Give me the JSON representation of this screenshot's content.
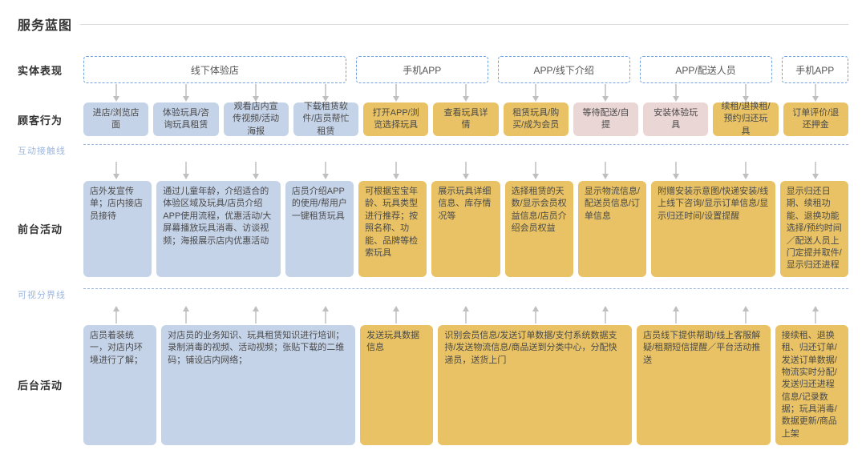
{
  "title": "服务蓝图",
  "labels": {
    "entity": "实体表现",
    "customer": "顾客行为",
    "interaction_line": "互动接触线",
    "front": "前台活动",
    "visibility_line": "可视分界线",
    "back": "后台活动"
  },
  "colors": {
    "blue": "#c5d3e8",
    "gold": "#e8c264",
    "pink": "#ead6d4",
    "dash": "#6fa0e0",
    "line": "#9bb7e0",
    "title_gray": "#d9d9d9"
  },
  "entity_boxes": [
    {
      "text": "线下体验店",
      "span": 4
    },
    {
      "text": "手机APP",
      "span": 2
    },
    {
      "text": "APP/线下介绍",
      "span": 2
    },
    {
      "text": "APP/配送人员",
      "span": 2
    },
    {
      "text": "手机APP",
      "span": 1
    }
  ],
  "customer_actions": [
    {
      "text": "进店/浏览店面",
      "color": "blue"
    },
    {
      "text": "体验玩具/咨询玩具租赁",
      "color": "blue"
    },
    {
      "text": "观看店内宣传视频/活动海报",
      "color": "blue"
    },
    {
      "text": "下载租赁软件/店员帮忙租赁",
      "color": "blue"
    },
    {
      "text": "打开APP/浏览选择玩具",
      "color": "gold"
    },
    {
      "text": "查看玩具详情",
      "color": "gold"
    },
    {
      "text": "租赁玩具/购买/成为会员",
      "color": "gold"
    },
    {
      "text": "等待配送/自提",
      "color": "pink"
    },
    {
      "text": "安装体验玩具",
      "color": "pink"
    },
    {
      "text": "续租/退换租/预约归还玩具",
      "color": "gold"
    },
    {
      "text": "订单评价/退还押金",
      "color": "gold"
    }
  ],
  "front_activities": [
    {
      "text": "店外发宣传单；店内接店员接待",
      "color": "blue",
      "cols": [
        0
      ]
    },
    {
      "text": "通过儿童年龄，介绍适合的体验区域及玩具/店员介绍APP使用流程，优惠活动/大屏幕播放玩具消毒、访谈视频；海报展示店内优惠活动",
      "color": "blue",
      "cols": [
        1,
        2
      ]
    },
    {
      "text": "店员介绍APP的使用/帮用户一键租赁玩具",
      "color": "blue",
      "cols": [
        3
      ]
    },
    {
      "text": "可根据宝宝年龄、玩具类型进行推荐；按照名称、功能、品牌等检索玩具",
      "color": "gold",
      "cols": [
        4
      ]
    },
    {
      "text": "展示玩具详细信息、库存情况等",
      "color": "gold",
      "cols": [
        5
      ]
    },
    {
      "text": "选择租赁的天数/显示会员权益信息/店员介绍会员权益",
      "color": "gold",
      "cols": [
        6
      ]
    },
    {
      "text": "显示物流信息/配送员信息/订单信息",
      "color": "gold",
      "cols": [
        7
      ]
    },
    {
      "text": "附赠安装示意图/快递安装/线上线下咨询/显示订单信息/显示归还时间/设置提醒",
      "color": "gold",
      "cols": [
        8,
        9
      ]
    },
    {
      "text": "显示归还日期、续租功能、退换功能选择/预约时间／配送人员上门定提并取件/显示归还进程",
      "color": "gold",
      "cols": [
        10
      ]
    }
  ],
  "back_activities": [
    {
      "text": "店员着装统一，对店内环境进行了解；",
      "color": "blue",
      "cols": [
        0
      ]
    },
    {
      "text": "对店员的业务知识、玩具租赁知识进行培训；录制消毒的视频、活动视频；张贴下载的二维码；铺设店内网络；",
      "color": "blue",
      "cols": [
        1,
        2,
        3
      ]
    },
    {
      "text": "发送玩具数据信息",
      "color": "gold",
      "cols": [
        4
      ]
    },
    {
      "text": "识别会员信息/发送订单数据/支付系统数据支持/发送物流信息/商品送到分类中心，分配快递员，送货上门",
      "color": "gold",
      "cols": [
        5,
        6,
        7
      ]
    },
    {
      "text": "店员线下提供帮助/线上客服解疑/租期短信提醒／平台活动推送",
      "color": "gold",
      "cols": [
        8,
        9
      ]
    },
    {
      "text": "接续租、退换租、归还订单/发送订单数据/物流实时分配/发送归还进程信息/记录数据；玩具消毒/数据更新/商品上架",
      "color": "gold",
      "cols": [
        10
      ]
    }
  ]
}
